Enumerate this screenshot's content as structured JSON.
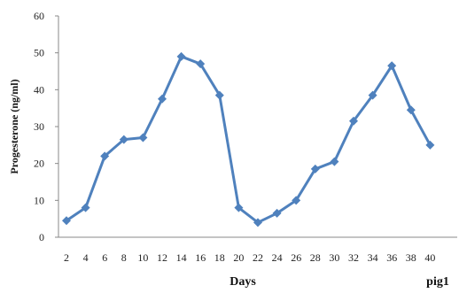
{
  "chart_data": {
    "type": "line",
    "xlabel": "Days",
    "ylabel": "Progesterone (ng/ml)",
    "annotation": "pig1",
    "ylim": [
      0,
      60
    ],
    "yticks": [
      0,
      10,
      20,
      30,
      40,
      50,
      60
    ],
    "grid": false,
    "legend": "none",
    "x": [
      2,
      4,
      6,
      8,
      10,
      12,
      14,
      16,
      18,
      20,
      22,
      24,
      26,
      28,
      30,
      32,
      34,
      36,
      38,
      40
    ],
    "series": [
      {
        "values": [
          4.5,
          8,
          22,
          26.5,
          27,
          37.5,
          49,
          47,
          38.5,
          8,
          4,
          6.5,
          10,
          18.5,
          20.5,
          31.5,
          38.5,
          46.5,
          34.5,
          25
        ],
        "color": "#4F81BD"
      }
    ]
  }
}
